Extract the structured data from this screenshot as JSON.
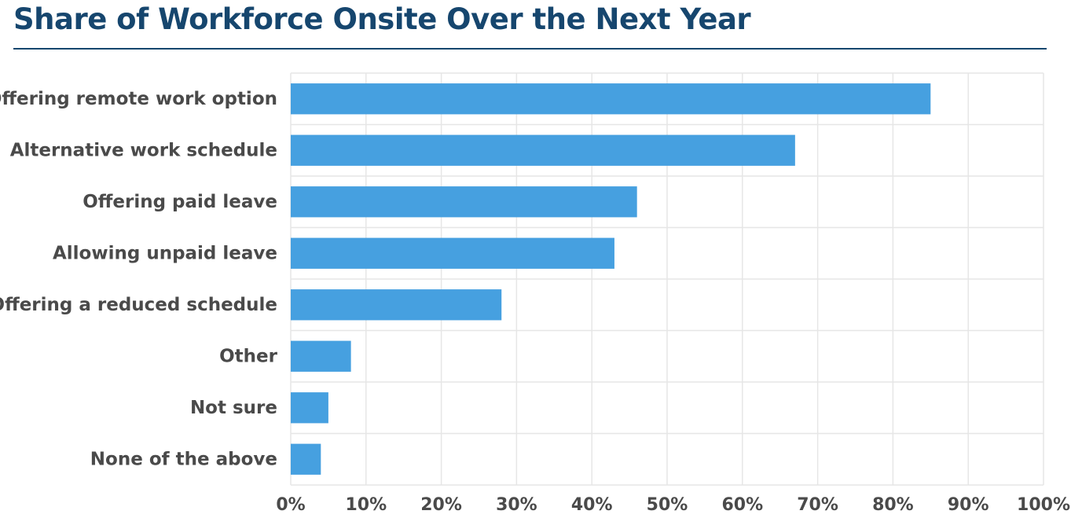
{
  "chart_data": {
    "type": "bar",
    "orientation": "horizontal",
    "title": "Share of Workforce Onsite Over the Next Year",
    "categories": [
      "Offering remote work option",
      "Alternative work schedule",
      "Offering paid leave",
      "Allowing unpaid leave",
      "Offering a reduced schedule",
      "Other",
      "Not sure",
      "None of the above"
    ],
    "values": [
      85,
      67,
      46,
      43,
      28,
      8,
      5,
      4
    ],
    "xlim": [
      0,
      100
    ],
    "x_ticks": [
      "0%",
      "10%",
      "20%",
      "30%",
      "40%",
      "50%",
      "60%",
      "70%",
      "80%",
      "90%",
      "100%"
    ],
    "grid": true,
    "colors": {
      "bar": "#46a0e0",
      "title": "#16466e",
      "grid": "#e6e6e6",
      "label": "#4a4a4a"
    }
  }
}
